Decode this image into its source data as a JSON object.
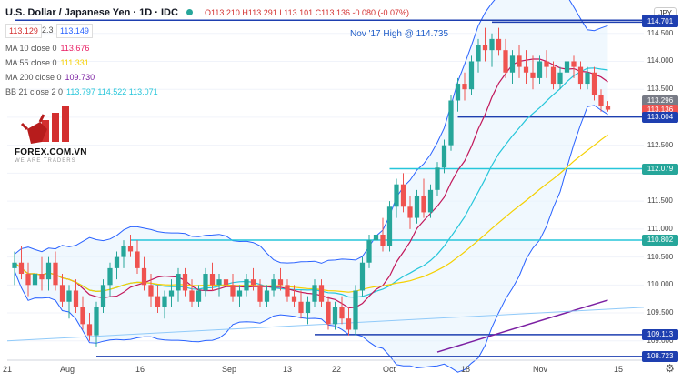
{
  "header": {
    "symbol": "U.S. Dollar / Japanese Yen · 1D · IDC",
    "ohlc": "O113.210 H113.291 L113.101 C113.136 -0.080 (-0.07%)",
    "bid": "113.129",
    "spread": "2.3",
    "ask": "113.149",
    "currency": "JPY"
  },
  "indicators": [
    {
      "label": "MA 10 close 0",
      "value": "113.676",
      "color": "#e91e63"
    },
    {
      "label": "MA 55 close 0",
      "value": "111.331",
      "color": "#f5d000"
    },
    {
      "label": "MA 200 close 0",
      "value": "109.730",
      "color": "#7b1fa2"
    },
    {
      "label": "BB 21 close 2 0",
      "value": "113.797   114.522   113.071",
      "color": "#26c6da"
    }
  ],
  "logo": {
    "name": "FOREX.COM.VN",
    "tagline": "WE ARE TRADERS"
  },
  "annotation": "Nov '17 High @ 114.735",
  "colors": {
    "up": "#26a69a",
    "down": "#ef5350",
    "bb": "#2962ff",
    "ma10": "#c2185b",
    "ma55": "#f5d000",
    "ma200": "#7b1fa2",
    "level": "#1e3fb0",
    "cyanlevel": "#26c6da"
  },
  "chart_data": {
    "type": "candlestick",
    "x_ticks": [
      "21",
      "Aug",
      "16",
      "Sep",
      "13",
      "22",
      "Oct",
      "18",
      "Nov",
      "15"
    ],
    "y_ticks": [
      "114.500",
      "114.000",
      "113.500",
      "113.000",
      "112.500",
      "112.000",
      "111.500",
      "111.000",
      "110.500",
      "110.000",
      "109.500",
      "109.000"
    ],
    "ylim": [
      108.72,
      115.0
    ],
    "price_labels": [
      {
        "text": "114.735",
        "color": "#1e3fb0"
      },
      {
        "text": "114.701",
        "color": "#1e3fb0"
      },
      {
        "text": "113.296",
        "color": "#787b86"
      },
      {
        "text": "113.136",
        "color": "#ef5350"
      },
      {
        "text": "113.004",
        "color": "#1e3fb0"
      },
      {
        "text": "112.079",
        "color": "#26a69a"
      },
      {
        "text": "110.802",
        "color": "#26a69a"
      },
      {
        "text": "109.113",
        "color": "#1e3fb0"
      },
      {
        "text": "108.723",
        "color": "#1e3fb0"
      }
    ],
    "levels": [
      {
        "y": 114.735,
        "x_from_index": 0,
        "color": "#1e3fb0"
      },
      {
        "y": 114.701,
        "x_from_index": 70,
        "color": "#1e3fb0"
      },
      {
        "y": 113.004,
        "x_from_index": 65,
        "color": "#1e3fb0"
      },
      {
        "y": 112.079,
        "x_from_index": 55,
        "color": "#26c6da"
      },
      {
        "y": 110.802,
        "x_from_index": 17,
        "color": "#26c6da"
      },
      {
        "y": 109.113,
        "x_from_index": 44,
        "color": "#1e3fb0"
      },
      {
        "y": 108.723,
        "x_from_index": 12,
        "color": "#1e3fb0"
      }
    ],
    "candles_ohlc": [
      [
        110.3,
        110.6,
        110.0,
        110.4
      ],
      [
        110.4,
        110.7,
        110.1,
        110.2
      ],
      [
        110.2,
        110.4,
        109.8,
        110.0
      ],
      [
        110.0,
        110.3,
        109.7,
        110.2
      ],
      [
        110.2,
        110.5,
        109.9,
        110.1
      ],
      [
        110.1,
        110.5,
        109.9,
        110.4
      ],
      [
        110.4,
        110.6,
        109.9,
        110.0
      ],
      [
        110.0,
        110.2,
        109.6,
        109.7
      ],
      [
        109.7,
        110.0,
        109.4,
        109.9
      ],
      [
        109.9,
        110.1,
        109.5,
        109.6
      ],
      [
        109.6,
        109.8,
        109.2,
        109.3
      ],
      [
        109.3,
        109.5,
        109.0,
        109.1
      ],
      [
        109.1,
        109.7,
        108.9,
        109.6
      ],
      [
        109.6,
        110.1,
        109.5,
        110.0
      ],
      [
        110.0,
        110.4,
        109.8,
        110.3
      ],
      [
        110.3,
        110.6,
        110.1,
        110.5
      ],
      [
        110.5,
        110.8,
        110.3,
        110.7
      ],
      [
        110.7,
        110.9,
        110.5,
        110.6
      ],
      [
        110.6,
        110.8,
        110.2,
        110.3
      ],
      [
        110.3,
        110.5,
        109.9,
        110.0
      ],
      [
        110.0,
        110.2,
        109.6,
        109.8
      ],
      [
        109.8,
        110.0,
        109.5,
        109.6
      ],
      [
        109.6,
        109.9,
        109.4,
        109.8
      ],
      [
        109.8,
        110.1,
        109.6,
        109.9
      ],
      [
        109.9,
        110.3,
        109.7,
        110.2
      ],
      [
        110.2,
        110.3,
        109.8,
        109.9
      ],
      [
        109.9,
        110.1,
        109.6,
        109.7
      ],
      [
        109.7,
        110.0,
        109.6,
        109.9
      ],
      [
        109.9,
        110.3,
        109.8,
        110.2
      ],
      [
        110.2,
        110.4,
        109.9,
        110.0
      ],
      [
        110.0,
        110.2,
        109.8,
        110.1
      ],
      [
        110.1,
        110.3,
        109.9,
        110.0
      ],
      [
        110.0,
        110.2,
        109.7,
        109.8
      ],
      [
        109.8,
        110.0,
        109.6,
        109.9
      ],
      [
        109.9,
        110.2,
        109.8,
        110.1
      ],
      [
        110.1,
        110.3,
        109.9,
        110.0
      ],
      [
        110.0,
        110.1,
        109.6,
        109.7
      ],
      [
        109.7,
        110.0,
        109.6,
        109.9
      ],
      [
        109.9,
        110.2,
        109.8,
        110.1
      ],
      [
        110.1,
        110.3,
        109.9,
        110.0
      ],
      [
        110.0,
        110.1,
        109.7,
        109.8
      ],
      [
        109.8,
        110.0,
        109.6,
        109.7
      ],
      [
        109.7,
        109.9,
        109.4,
        109.5
      ],
      [
        109.5,
        109.8,
        109.3,
        109.7
      ],
      [
        109.7,
        110.1,
        109.6,
        110.0
      ],
      [
        110.0,
        110.1,
        109.6,
        109.7
      ],
      [
        109.7,
        109.8,
        109.2,
        109.3
      ],
      [
        109.3,
        109.7,
        109.2,
        109.6
      ],
      [
        109.6,
        109.8,
        109.3,
        109.4
      ],
      [
        109.4,
        109.6,
        109.1,
        109.2
      ],
      [
        109.2,
        110.0,
        109.1,
        109.9
      ],
      [
        109.9,
        110.5,
        109.8,
        110.4
      ],
      [
        110.4,
        110.9,
        110.3,
        110.8
      ],
      [
        110.8,
        111.2,
        110.5,
        110.9
      ],
      [
        110.9,
        111.2,
        110.6,
        110.7
      ],
      [
        110.7,
        111.5,
        110.6,
        111.4
      ],
      [
        111.4,
        111.9,
        111.2,
        111.8
      ],
      [
        111.8,
        112.0,
        111.3,
        111.4
      ],
      [
        111.4,
        111.6,
        111.0,
        111.2
      ],
      [
        111.2,
        111.7,
        111.1,
        111.6
      ],
      [
        111.6,
        111.9,
        111.2,
        111.3
      ],
      [
        111.3,
        111.8,
        111.2,
        111.7
      ],
      [
        111.7,
        112.2,
        111.6,
        112.1
      ],
      [
        112.1,
        112.6,
        112.0,
        112.5
      ],
      [
        112.5,
        113.4,
        112.4,
        113.3
      ],
      [
        113.3,
        113.7,
        113.1,
        113.6
      ],
      [
        113.6,
        113.8,
        113.3,
        113.5
      ],
      [
        113.5,
        114.1,
        113.4,
        114.0
      ],
      [
        114.0,
        114.4,
        113.8,
        114.3
      ],
      [
        114.3,
        114.6,
        114.0,
        114.2
      ],
      [
        114.2,
        114.5,
        113.9,
        114.4
      ],
      [
        114.4,
        114.6,
        114.1,
        114.2
      ],
      [
        114.2,
        114.4,
        113.7,
        113.8
      ],
      [
        113.8,
        114.2,
        113.6,
        114.1
      ],
      [
        114.1,
        114.3,
        113.7,
        113.9
      ],
      [
        113.9,
        114.2,
        113.6,
        113.8
      ],
      [
        113.8,
        114.1,
        113.5,
        113.7
      ],
      [
        113.7,
        114.1,
        113.6,
        114.0
      ],
      [
        114.0,
        114.2,
        113.7,
        113.9
      ],
      [
        113.9,
        114.0,
        113.5,
        113.6
      ],
      [
        113.6,
        113.9,
        113.5,
        113.8
      ],
      [
        113.8,
        114.1,
        113.6,
        114.0
      ],
      [
        114.0,
        114.1,
        113.7,
        113.9
      ],
      [
        113.9,
        114.0,
        113.5,
        113.6
      ],
      [
        113.6,
        113.9,
        113.5,
        113.8
      ],
      [
        113.8,
        113.9,
        113.3,
        113.4
      ],
      [
        113.4,
        113.5,
        113.1,
        113.2
      ],
      [
        113.21,
        113.29,
        113.1,
        113.136
      ]
    ]
  }
}
